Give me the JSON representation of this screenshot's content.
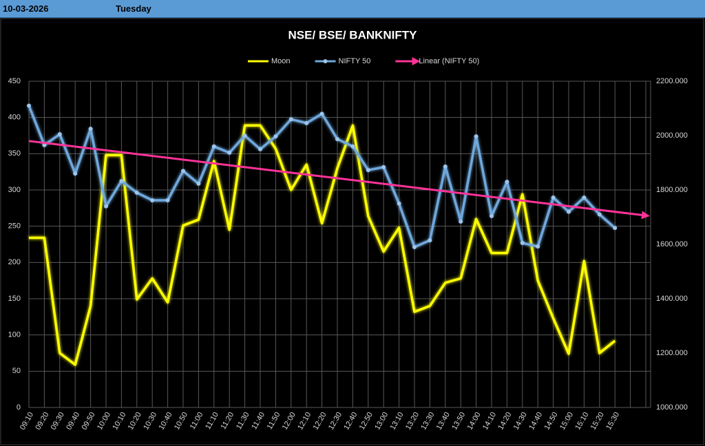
{
  "header": {
    "date": "10-03-2026",
    "day": "Tuesday"
  },
  "chart_data": {
    "type": "line",
    "title": "NSE/ BSE/ BANKNIFTY",
    "categories": [
      "09:10",
      "09:20",
      "09:30",
      "09:40",
      "09:50",
      "10:00",
      "10:10",
      "10:20",
      "10:30",
      "10:40",
      "10:50",
      "11:00",
      "11:10",
      "11:20",
      "11:30",
      "11:40",
      "11:50",
      "12:00",
      "12:10",
      "12:20",
      "12:30",
      "12:40",
      "12:50",
      "13:00",
      "13:10",
      "13:20",
      "13:30",
      "13:40",
      "13:50",
      "14:00",
      "14:10",
      "14:20",
      "14:30",
      "14:40",
      "14:50",
      "15:00",
      "15:10",
      "15:20",
      "15:30",
      null,
      null
    ],
    "series": [
      {
        "name": "Moon",
        "color": "#ffff00",
        "axis": "y",
        "values": [
          234,
          234,
          75,
          59,
          140,
          348,
          348,
          149,
          178,
          145,
          251,
          259,
          340,
          245,
          389,
          389,
          357,
          300,
          335,
          254,
          330,
          389,
          264,
          215,
          248,
          132,
          140,
          172,
          178,
          260,
          213,
          213,
          294,
          175,
          123,
          74,
          202,
          75,
          92,
          null,
          null
        ]
      },
      {
        "name": "NIFTY 50",
        "color": "#6fa8dc",
        "axis": "y2",
        "markers": true,
        "values": [
          2110,
          1965,
          2005,
          1860,
          2025,
          1740,
          1833,
          1790,
          1762,
          1762,
          1870,
          1823,
          1960,
          1937,
          2000,
          1950,
          1997,
          2060,
          2046,
          2080,
          1987,
          1960,
          1873,
          1884,
          1750,
          1590,
          1615,
          1886,
          1684,
          1997,
          1704,
          1830,
          1605,
          1592,
          1772,
          1720,
          1772,
          1710,
          1660,
          null,
          null
        ]
      },
      {
        "name": "Linear (NIFTY 50)",
        "color": "#ff3399",
        "axis": "y2",
        "trend": true,
        "values": [
          1980,
          null,
          null,
          null,
          null,
          null,
          null,
          null,
          null,
          null,
          null,
          null,
          null,
          null,
          null,
          null,
          null,
          null,
          null,
          null,
          null,
          null,
          null,
          null,
          null,
          null,
          null,
          null,
          null,
          null,
          null,
          null,
          null,
          null,
          null,
          null,
          null,
          null,
          null,
          null,
          1706
        ]
      }
    ],
    "ylim": [
      0,
      450
    ],
    "yticks": [
      0,
      50,
      100,
      150,
      200,
      250,
      300,
      350,
      400,
      450
    ],
    "y2lim": [
      1000,
      2200
    ],
    "y2ticks": [
      {
        "value": 1000,
        "label": "1000.000"
      },
      {
        "value": 1200,
        "label": "1200.000"
      },
      {
        "value": 1400,
        "label": "1400.000"
      },
      {
        "value": 1600,
        "label": "1600.000"
      },
      {
        "value": 1800,
        "label": "1800.000"
      },
      {
        "value": 2000,
        "label": "2000.000"
      },
      {
        "value": 2200,
        "label": "2200.000"
      }
    ],
    "grid": true,
    "legend": "top"
  }
}
